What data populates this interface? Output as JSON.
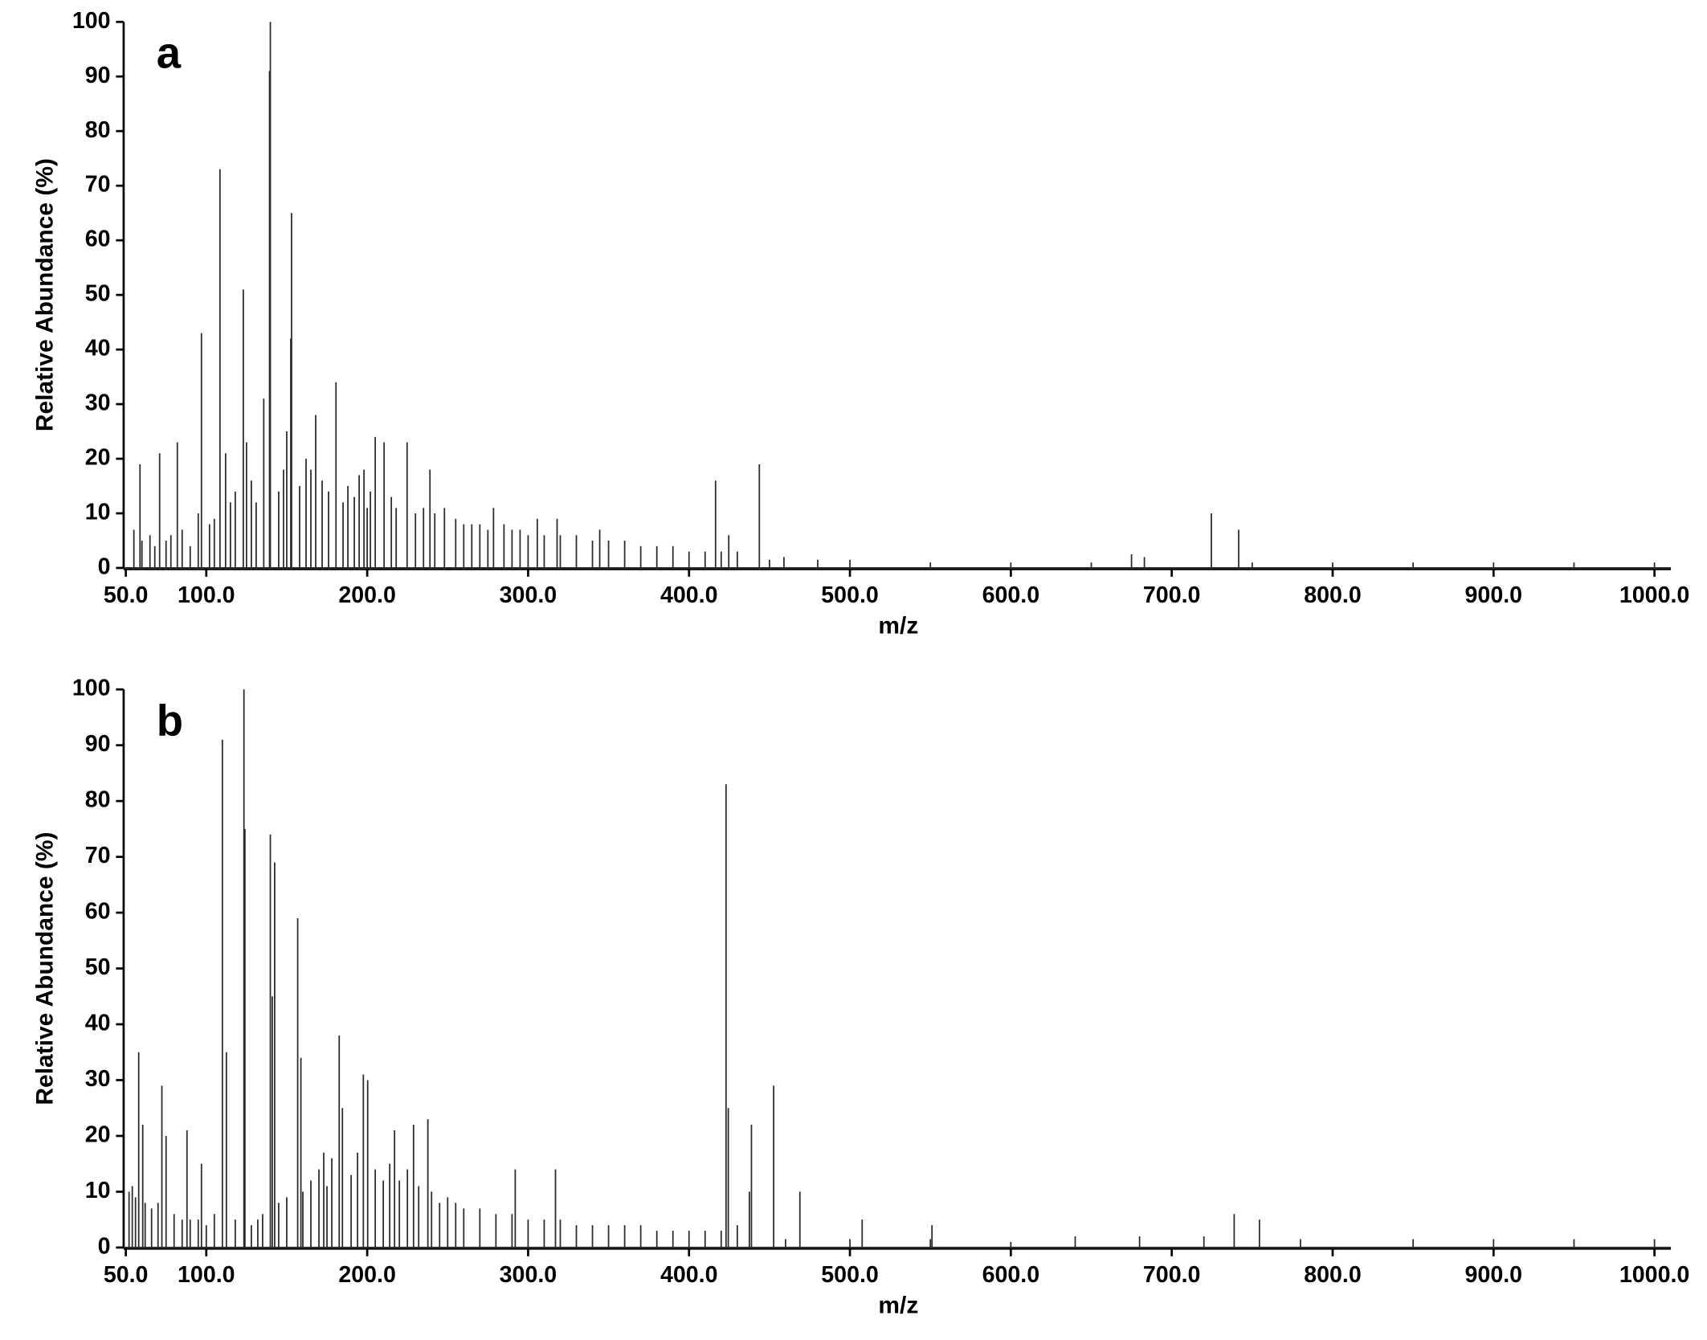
{
  "chart_data": [
    {
      "type": "stem",
      "title": "a",
      "x_label": "m/z",
      "y_label": "Relative Abundance (%)",
      "color": "#2b2b2b",
      "xlim": [
        50,
        1000
      ],
      "ylim": [
        0,
        100
      ],
      "xticks": [
        {
          "value": 50,
          "label": "50.0"
        },
        {
          "value": 100,
          "label": "100.0"
        },
        {
          "value": 200,
          "label": "200.0"
        },
        {
          "value": 300,
          "label": "300.0"
        },
        {
          "value": 400,
          "label": "400.0"
        },
        {
          "value": 500,
          "label": "500.0"
        },
        {
          "value": 600,
          "label": "600.0"
        },
        {
          "value": 700,
          "label": "700.0"
        },
        {
          "value": 800,
          "label": "800.0"
        },
        {
          "value": 900,
          "label": "900.0"
        },
        {
          "value": 1000,
          "label": "1000.0"
        }
      ],
      "yticks": [
        0,
        10,
        20,
        30,
        40,
        50,
        60,
        70,
        80,
        90,
        100
      ],
      "x": [
        58.8,
        71,
        82,
        97,
        108.5,
        112,
        123,
        125,
        135.7,
        139.8,
        139.3,
        150,
        153,
        152.5,
        168,
        180.6,
        198,
        205,
        210.5,
        224.8,
        239,
        278.5,
        305.7,
        318,
        344.5,
        416.5,
        424.7,
        443.7,
        459,
        683,
        724.6,
        741.6,
        55,
        60,
        65,
        68,
        75,
        78,
        85,
        90,
        95,
        102,
        105,
        115,
        118,
        128,
        131,
        145,
        148,
        158,
        162,
        165,
        172,
        176,
        185,
        188,
        192,
        195,
        200,
        202,
        215,
        218,
        230,
        235,
        242,
        248,
        255,
        260,
        265,
        270,
        275,
        285,
        290,
        295,
        300,
        310,
        320,
        330,
        340,
        350,
        360,
        370,
        380,
        390,
        400,
        410,
        420,
        430,
        450,
        480,
        500,
        550,
        600,
        650,
        675,
        750,
        800,
        850,
        900,
        950,
        1000
      ],
      "values": [
        19,
        21,
        23,
        43,
        73,
        21,
        51,
        23,
        31,
        100,
        91,
        25,
        65,
        42,
        28,
        34,
        18,
        24,
        23,
        23,
        18,
        11,
        9,
        9,
        7,
        16,
        6,
        19,
        2,
        2,
        10,
        7,
        7,
        5,
        6,
        4,
        5,
        6,
        7,
        4,
        10,
        8,
        9,
        12,
        14,
        16,
        12,
        14,
        18,
        15,
        20,
        18,
        16,
        14,
        12,
        15,
        13,
        17,
        11,
        14,
        13,
        11,
        10,
        11,
        10,
        11,
        9,
        8,
        8,
        8,
        7,
        8,
        7,
        7,
        6,
        6,
        6,
        6,
        5,
        5,
        5,
        4,
        4,
        4,
        3,
        3,
        3,
        3,
        1.5,
        1.5,
        1.5,
        1,
        1,
        1,
        2.5,
        1,
        1,
        1,
        1,
        1,
        1
      ]
    },
    {
      "type": "stem",
      "title": "b",
      "x_label": "m/z",
      "y_label": "Relative Abundance (%)",
      "color": "#2b2b2b",
      "xlim": [
        50,
        1000
      ],
      "ylim": [
        0,
        100
      ],
      "xticks": [
        {
          "value": 50,
          "label": "50.0"
        },
        {
          "value": 100,
          "label": "100.0"
        },
        {
          "value": 200,
          "label": "200.0"
        },
        {
          "value": 300,
          "label": "300.0"
        },
        {
          "value": 400,
          "label": "400.0"
        },
        {
          "value": 500,
          "label": "500.0"
        },
        {
          "value": 600,
          "label": "600.0"
        },
        {
          "value": 700,
          "label": "700.0"
        },
        {
          "value": 800,
          "label": "800.0"
        },
        {
          "value": 900,
          "label": "900.0"
        },
        {
          "value": 1000,
          "label": "1000.0"
        }
      ],
      "yticks": [
        0,
        10,
        20,
        30,
        40,
        50,
        60,
        70,
        80,
        90,
        100
      ],
      "x": [
        58,
        60.5,
        72.4,
        75,
        88,
        97,
        110,
        112.5,
        123.4,
        124,
        139.8,
        142.5,
        141,
        156.8,
        158.8,
        173,
        182.6,
        184.6,
        197.6,
        200.3,
        217,
        228.8,
        237.7,
        292,
        317,
        423,
        424.4,
        438.8,
        437.5,
        452.6,
        468.9,
        507.6,
        551,
        738.8,
        754.5,
        52,
        54,
        56,
        62,
        66,
        70,
        80,
        85,
        90,
        95,
        100,
        105,
        118,
        128,
        132,
        135,
        145,
        150,
        160,
        165,
        170,
        175,
        178,
        190,
        194,
        205,
        210,
        214,
        220,
        225,
        232,
        240,
        245,
        250,
        255,
        260,
        270,
        280,
        290,
        300,
        310,
        320,
        330,
        340,
        350,
        360,
        370,
        380,
        390,
        400,
        410,
        420,
        430,
        460,
        500,
        550,
        600,
        640,
        680,
        720,
        780,
        850,
        900,
        950,
        1000
      ],
      "values": [
        35,
        22,
        29,
        20,
        21,
        15,
        91,
        35,
        100,
        75,
        74,
        69,
        45,
        59,
        34,
        17,
        38,
        25,
        31,
        30,
        21,
        22,
        23,
        14,
        14,
        83,
        25,
        22,
        10,
        29,
        10,
        5,
        4,
        6,
        5,
        10,
        11,
        9,
        8,
        7,
        8,
        6,
        5,
        5,
        5,
        4,
        6,
        5,
        4,
        5,
        6,
        8,
        9,
        10,
        12,
        14,
        11,
        16,
        13,
        17,
        14,
        12,
        15,
        12,
        14,
        11,
        10,
        8,
        9,
        8,
        7,
        7,
        6,
        6,
        5,
        5,
        5,
        4,
        4,
        4,
        4,
        4,
        3,
        3,
        3,
        3,
        3,
        4,
        1.5,
        1.5,
        1.5,
        1,
        2,
        2,
        2,
        1.5,
        1.5,
        1.5,
        1.5,
        1.5
      ]
    }
  ]
}
